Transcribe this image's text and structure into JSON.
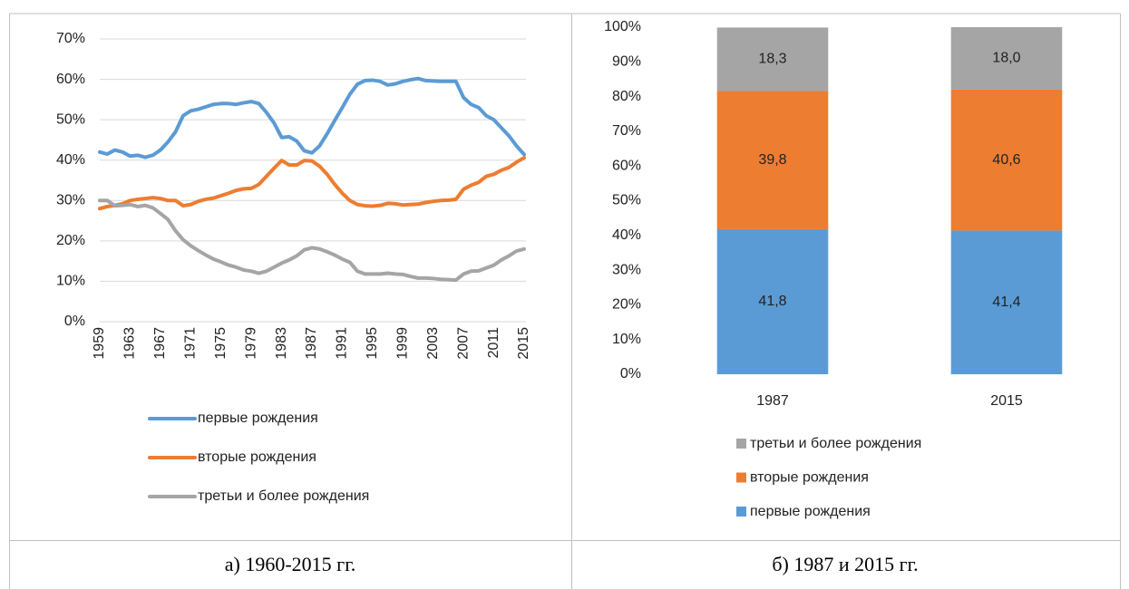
{
  "chart_data": [
    {
      "type": "line",
      "caption": "а) 1960-2015 гг.",
      "x": [
        1959,
        1960,
        1961,
        1962,
        1963,
        1964,
        1965,
        1966,
        1967,
        1968,
        1969,
        1970,
        1971,
        1972,
        1973,
        1974,
        1975,
        1976,
        1977,
        1978,
        1979,
        1980,
        1981,
        1982,
        1983,
        1984,
        1985,
        1986,
        1987,
        1988,
        1989,
        1990,
        1991,
        1992,
        1993,
        1994,
        1995,
        1996,
        1997,
        1998,
        1999,
        2000,
        2001,
        2002,
        2003,
        2004,
        2005,
        2006,
        2007,
        2008,
        2009,
        2010,
        2011,
        2012,
        2013,
        2014,
        2015
      ],
      "xlim": [
        1959,
        2015
      ],
      "xticks": [
        1959,
        1963,
        1967,
        1971,
        1975,
        1979,
        1983,
        1987,
        1991,
        1995,
        1999,
        2003,
        2007,
        2011,
        2015
      ],
      "ylim": [
        0,
        70
      ],
      "yticks": [
        {
          "value": 0,
          "label": "0%"
        },
        {
          "value": 10,
          "label": "10%"
        },
        {
          "value": 20,
          "label": "20%"
        },
        {
          "value": 30,
          "label": "30%"
        },
        {
          "value": 40,
          "label": "40%"
        },
        {
          "value": 50,
          "label": "50%"
        },
        {
          "value": 60,
          "label": "60%"
        },
        {
          "value": 70,
          "label": "70%"
        }
      ],
      "grid": true,
      "series": [
        {
          "name": "первые рождения",
          "color": "#5b9bd5",
          "values": [
            42,
            41.5,
            42.5,
            42,
            41,
            41.2,
            40.7,
            41.2,
            42.5,
            44.5,
            47,
            51,
            52.2,
            52.6,
            53.2,
            53.8,
            54,
            54,
            53.8,
            54.2,
            54.5,
            54,
            51.8,
            49.2,
            45.6,
            45.8,
            44.7,
            42.3,
            41.8,
            43.5,
            46.5,
            49.8,
            53,
            56.3,
            58.8,
            59.7,
            59.8,
            59.5,
            58.6,
            58.9,
            59.5,
            59.9,
            60.2,
            59.7,
            59.6,
            59.5,
            59.5,
            59.5,
            55.5,
            53.8,
            53,
            51,
            50,
            48,
            46,
            43.5,
            41.4
          ]
        },
        {
          "name": "вторые рождения",
          "color": "#ed7d31",
          "values": [
            28,
            28.5,
            28.8,
            29.2,
            30,
            30.3,
            30.5,
            30.7,
            30.5,
            30,
            30,
            28.7,
            29,
            29.8,
            30.3,
            30.6,
            31.2,
            31.8,
            32.5,
            32.9,
            33,
            34,
            36,
            38,
            39.9,
            38.8,
            38.8,
            39.9,
            39.8,
            38.5,
            36.5,
            34,
            31.8,
            30,
            29,
            28.7,
            28.6,
            28.8,
            29.3,
            29.2,
            28.9,
            29,
            29.1,
            29.5,
            29.8,
            30,
            30.1,
            30.3,
            32.8,
            33.8,
            34.5,
            36,
            36.5,
            37.5,
            38.2,
            39.5,
            40.6
          ]
        },
        {
          "name": "третьи и более рождения",
          "color": "#a5a5a5",
          "values": [
            30,
            30,
            28.7,
            28.8,
            29,
            28.5,
            28.8,
            28.2,
            26.8,
            25.3,
            22.5,
            20.3,
            18.8,
            17.6,
            16.5,
            15.5,
            14.8,
            14,
            13.5,
            12.8,
            12.5,
            12,
            12.5,
            13.5,
            14.5,
            15.3,
            16.3,
            17.8,
            18.3,
            18,
            17.3,
            16.5,
            15.5,
            14.7,
            12.5,
            11.8,
            11.8,
            11.8,
            12,
            11.8,
            11.7,
            11.2,
            10.8,
            10.8,
            10.7,
            10.5,
            10.4,
            10.3,
            11.8,
            12.5,
            12.6,
            13.3,
            14,
            15.3,
            16.3,
            17.5,
            18
          ]
        }
      ]
    },
    {
      "type": "stacked_bar",
      "caption": "б) 1987 и 2015 гг.",
      "categories": [
        "1987",
        "2015"
      ],
      "ylim": [
        0,
        100
      ],
      "yticks": [
        {
          "value": 0,
          "label": "0%"
        },
        {
          "value": 10,
          "label": "10%"
        },
        {
          "value": 20,
          "label": "20%"
        },
        {
          "value": 30,
          "label": "30%"
        },
        {
          "value": 40,
          "label": "40%"
        },
        {
          "value": 50,
          "label": "50%"
        },
        {
          "value": 60,
          "label": "60%"
        },
        {
          "value": 70,
          "label": "70%"
        },
        {
          "value": 80,
          "label": "80%"
        },
        {
          "value": 90,
          "label": "90%"
        },
        {
          "value": 100,
          "label": "100%"
        }
      ],
      "grid": false,
      "legend_reversed": true,
      "series": [
        {
          "name": "первые рождения",
          "color": "#5b9bd5",
          "values": [
            41.8,
            41.4
          ],
          "value_labels": [
            "41,8",
            "41,4"
          ]
        },
        {
          "name": "вторые рождения",
          "color": "#ed7d31",
          "values": [
            39.8,
            40.6
          ],
          "value_labels": [
            "39,8",
            "40,6"
          ]
        },
        {
          "name": "третьи и более рождения",
          "color": "#a5a5a5",
          "values": [
            18.3,
            18.0
          ],
          "value_labels": [
            "18,3",
            "18,0"
          ]
        }
      ]
    }
  ]
}
